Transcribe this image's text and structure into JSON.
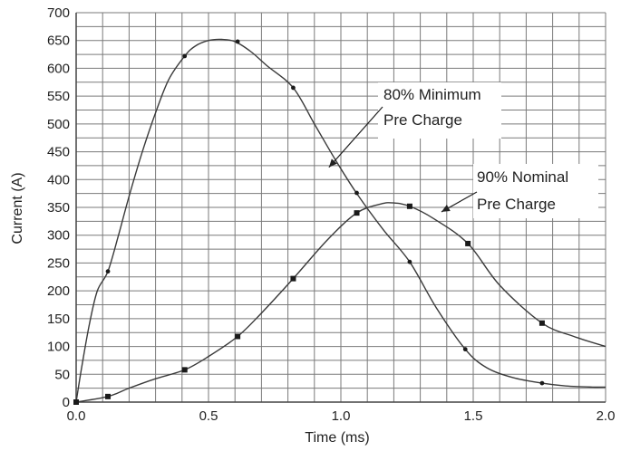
{
  "chart_data": {
    "type": "line",
    "title": "",
    "xlabel": "Time (ms)",
    "ylabel": "Current (A)",
    "xlim": [
      0,
      2.0
    ],
    "ylim": [
      0,
      700
    ],
    "grid": true,
    "x_tick_labels": [
      "0.0",
      "0.5",
      "1.0",
      "1.5",
      "2.0"
    ],
    "y_tick_labels": [
      "0",
      "50",
      "100",
      "150",
      "200",
      "250",
      "300",
      "350",
      "400",
      "450",
      "500",
      "550",
      "600",
      "650",
      "700"
    ],
    "series": [
      {
        "name": "80% Minimum Pre Charge",
        "marker": "dot",
        "x": [
          0,
          0.02,
          0.05,
          0.08,
          0.12,
          0.16,
          0.2,
          0.25,
          0.3,
          0.35,
          0.41,
          0.45,
          0.5,
          0.55,
          0.6,
          0.66,
          0.72,
          0.82,
          0.9,
          0.98,
          1.06,
          1.16,
          1.26,
          1.36,
          1.47,
          1.55,
          1.65,
          1.76,
          1.85,
          1.95,
          2.0
        ],
        "y": [
          0,
          60,
          140,
          200,
          235,
          300,
          370,
          450,
          520,
          580,
          622,
          640,
          650,
          652,
          648,
          630,
          605,
          565,
          500,
          435,
          375,
          310,
          252,
          170,
          95,
          62,
          44,
          34,
          29,
          27,
          27
        ],
        "markers": [
          [
            0,
            0
          ],
          [
            0.12,
            235
          ],
          [
            0.41,
            622
          ],
          [
            0.61,
            648
          ],
          [
            0.82,
            565
          ],
          [
            1.06,
            376
          ],
          [
            1.26,
            252
          ],
          [
            1.47,
            95
          ],
          [
            1.76,
            34
          ]
        ]
      },
      {
        "name": "90% Nominal Pre Charge",
        "marker": "square",
        "x": [
          0,
          0.12,
          0.2,
          0.3,
          0.41,
          0.5,
          0.61,
          0.7,
          0.82,
          0.95,
          1.06,
          1.15,
          1.2,
          1.26,
          1.35,
          1.48,
          1.6,
          1.76,
          1.88,
          2.0
        ],
        "y": [
          0,
          10,
          25,
          42,
          58,
          82,
          118,
          160,
          222,
          292,
          340,
          356,
          358,
          352,
          330,
          285,
          210,
          142,
          118,
          100
        ],
        "markers": [
          [
            0,
            0
          ],
          [
            0.12,
            10
          ],
          [
            0.41,
            58
          ],
          [
            0.61,
            118
          ],
          [
            0.82,
            222
          ],
          [
            1.06,
            340
          ],
          [
            1.26,
            352
          ],
          [
            1.48,
            285
          ],
          [
            1.76,
            142
          ]
        ]
      }
    ],
    "annotations": [
      {
        "lines": [
          "80% Minimum",
          "Pre Charge"
        ],
        "target": [
          0.95,
          625
        ],
        "arrow_to": [
          0.96,
          620
        ],
        "anchor_series": 0,
        "arrow_point": [
          0.955,
          622
        ]
      },
      {
        "lines": [
          "90% Nominal",
          "Pre Charge"
        ],
        "target": [
          1.38,
          342
        ],
        "arrow_to": [
          1.38,
          342
        ],
        "anchor_series": 1,
        "arrow_point": [
          1.38,
          342
        ]
      }
    ],
    "colors": {
      "grid": "#7a7a7a",
      "line": "#3a3a3a",
      "marker": "#1a1a1a",
      "axis": "#444444"
    }
  }
}
